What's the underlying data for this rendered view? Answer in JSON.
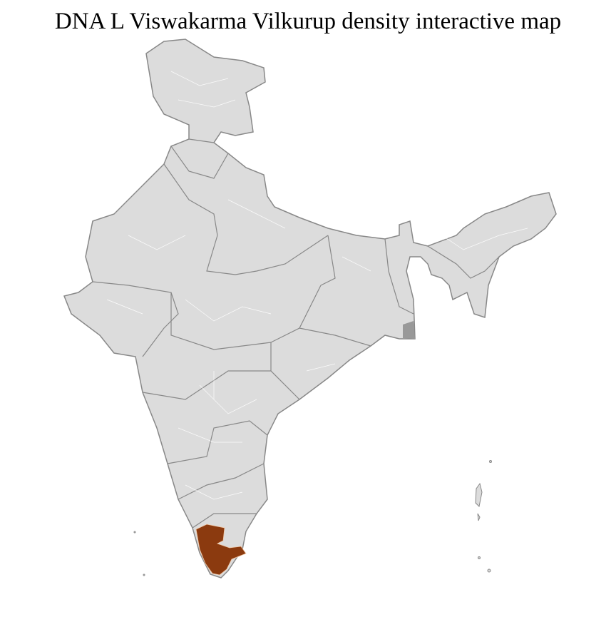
{
  "title": "DNA L Viswakarma Vilkurup density interactive map",
  "map": {
    "region": "India",
    "base_fill": "#dcdcdc",
    "border_color": "#888888",
    "district_border_color": "#ffffff",
    "highlight_color": "#8b3a0f",
    "highlighted_region": "Kerala and southern Tamil Nadu districts"
  }
}
